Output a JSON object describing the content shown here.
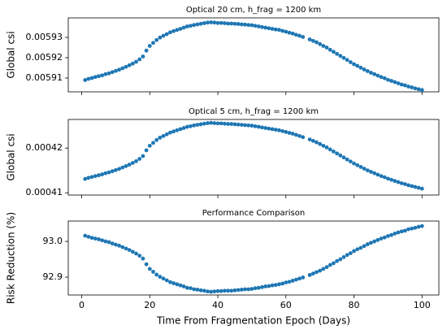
{
  "chart_data": [
    {
      "type": "scatter",
      "title": "Optical 20 cm, h_frag = 1200 km",
      "ylabel": "Global csi",
      "color": "#1f77b4",
      "xlim": [
        -3.95,
        104.95
      ],
      "xticks": [
        0,
        20,
        40,
        60,
        80,
        100
      ],
      "ylim": [
        0.0059032,
        0.0059396
      ],
      "yticks": [
        0.00591,
        0.00592,
        0.00593
      ],
      "x": [
        1,
        2,
        3,
        4,
        5,
        6,
        7,
        8,
        9,
        10,
        11,
        12,
        13,
        14,
        15,
        16,
        17,
        18,
        19,
        20,
        21,
        22,
        23,
        24,
        25,
        26,
        27,
        28,
        29,
        30,
        31,
        32,
        33,
        34,
        35,
        36,
        37,
        38,
        39,
        40,
        41,
        42,
        43,
        44,
        45,
        46,
        47,
        48,
        49,
        50,
        51,
        52,
        53,
        54,
        55,
        56,
        57,
        58,
        59,
        60,
        61,
        62,
        63,
        64,
        65,
        67,
        68,
        69,
        70,
        71,
        72,
        73,
        74,
        75,
        76,
        77,
        78,
        79,
        80,
        81,
        82,
        83,
        84,
        85,
        86,
        87,
        88,
        89,
        90,
        91,
        92,
        93,
        94,
        95,
        96,
        97,
        98,
        99,
        100
      ],
      "values": [
        0.005909,
        0.0059096,
        0.00591,
        0.0059105,
        0.0059109,
        0.0059113,
        0.0059119,
        0.0059123,
        0.0059129,
        0.0059135,
        0.0059141,
        0.0059148,
        0.0059155,
        0.0059163,
        0.0059171,
        0.005918,
        0.0059192,
        0.0059206,
        0.0059235,
        0.0059258,
        0.0059273,
        0.0059287,
        0.0059299,
        0.0059308,
        0.0059316,
        0.0059325,
        0.0059331,
        0.0059337,
        0.0059342,
        0.0059348,
        0.0059354,
        0.0059357,
        0.0059361,
        0.0059364,
        0.0059367,
        0.005937,
        0.0059373,
        0.0059374,
        0.0059373,
        0.0059371,
        0.0059371,
        0.005937,
        0.0059368,
        0.0059368,
        0.0059367,
        0.0059366,
        0.0059364,
        0.0059363,
        0.0059361,
        0.005936,
        0.0059357,
        0.0059354,
        0.0059351,
        0.0059348,
        0.0059345,
        0.0059342,
        0.0059339,
        0.0059337,
        0.0059332,
        0.0059328,
        0.0059323,
        0.0059319,
        0.0059313,
        0.0059308,
        0.0059302,
        0.005929,
        0.0059283,
        0.0059276,
        0.0059267,
        0.0059258,
        0.005925,
        0.0059239,
        0.0059229,
        0.0059219,
        0.0059209,
        0.0059199,
        0.0059189,
        0.0059178,
        0.0059168,
        0.005916,
        0.0059151,
        0.0059142,
        0.0059134,
        0.0059126,
        0.0059119,
        0.0059112,
        0.0059105,
        0.0059099,
        0.0059091,
        0.0059086,
        0.005908,
        0.0059074,
        0.0059068,
        0.0059064,
        0.0059058,
        0.0059054,
        0.0059049,
        0.0059045,
        0.0059041
      ]
    },
    {
      "type": "scatter",
      "title": "Optical 5 cm, h_frag = 1200 km",
      "ylabel": "Global csi",
      "color": "#1f77b4",
      "xlim": [
        -3.95,
        104.95
      ],
      "xticks": [
        0,
        20,
        40,
        60,
        80,
        100
      ],
      "ylim": [
        0.0004095,
        0.0004264
      ],
      "yticks": [
        0.00041,
        0.00042
      ],
      "x": [
        1,
        2,
        3,
        4,
        5,
        6,
        7,
        8,
        9,
        10,
        11,
        12,
        13,
        14,
        15,
        16,
        17,
        18,
        19,
        20,
        21,
        22,
        23,
        24,
        25,
        26,
        27,
        28,
        29,
        30,
        31,
        32,
        33,
        34,
        35,
        36,
        37,
        38,
        39,
        40,
        41,
        42,
        43,
        44,
        45,
        46,
        47,
        48,
        49,
        50,
        51,
        52,
        53,
        54,
        55,
        56,
        57,
        58,
        59,
        60,
        61,
        62,
        63,
        64,
        65,
        67,
        68,
        69,
        70,
        71,
        72,
        73,
        74,
        75,
        76,
        77,
        78,
        79,
        80,
        81,
        82,
        83,
        84,
        85,
        86,
        87,
        88,
        89,
        90,
        91,
        92,
        93,
        94,
        95,
        96,
        97,
        98,
        99,
        100
      ],
      "values": [
        0.0004131,
        0.00041336,
        0.00041355,
        0.00041374,
        0.00041393,
        0.00041412,
        0.00041438,
        0.00041457,
        0.00041483,
        0.00041508,
        0.00041534,
        0.00041566,
        0.00041598,
        0.0004163,
        0.00041668,
        0.00041707,
        0.00041758,
        0.00041822,
        0.0004195,
        0.00042052,
        0.00042116,
        0.0004218,
        0.00042232,
        0.0004227,
        0.00042308,
        0.00042347,
        0.00042372,
        0.00042398,
        0.00042424,
        0.00042449,
        0.00042475,
        0.00042488,
        0.00042507,
        0.0004252,
        0.00042532,
        0.00042545,
        0.00042558,
        0.00042564,
        0.00042558,
        0.00042552,
        0.00042552,
        0.00042545,
        0.00042539,
        0.00042539,
        0.00042532,
        0.00042526,
        0.0004252,
        0.00042513,
        0.00042507,
        0.000425,
        0.00042488,
        0.00042475,
        0.00042462,
        0.00042449,
        0.00042436,
        0.00042424,
        0.00042411,
        0.00042398,
        0.00042379,
        0.0004236,
        0.0004234,
        0.00042321,
        0.00042296,
        0.0004227,
        0.00042244,
        0.00042193,
        0.00042161,
        0.00042129,
        0.00042091,
        0.00042052,
        0.00042014,
        0.00041969,
        0.00041924,
        0.0004188,
        0.00041835,
        0.0004179,
        0.00041745,
        0.000417,
        0.00041656,
        0.00041617,
        0.00041579,
        0.0004154,
        0.00041502,
        0.0004147,
        0.00041438,
        0.00041406,
        0.00041374,
        0.00041348,
        0.00041316,
        0.00041291,
        0.00041265,
        0.0004124,
        0.00041214,
        0.00041195,
        0.00041169,
        0.0004115,
        0.00041131,
        0.00041112,
        0.00041092
      ]
    },
    {
      "type": "scatter",
      "title": "Performance Comparison",
      "ylabel": "Risk Reduction (%)",
      "xlabel": "Time From Fragmentation Epoch (Days)",
      "color": "#1f77b4",
      "xlim": [
        -3.95,
        104.95
      ],
      "xticks": [
        0,
        20,
        40,
        60,
        80,
        100
      ],
      "ylim": [
        92.85,
        93.057
      ],
      "yticks": [
        92.9,
        {
          "value": 93,
          "label": "93.0"
        }
      ],
      "x": [
        1,
        2,
        3,
        4,
        5,
        6,
        7,
        8,
        9,
        10,
        11,
        12,
        13,
        14,
        15,
        16,
        17,
        18,
        19,
        20,
        21,
        22,
        23,
        24,
        25,
        26,
        27,
        28,
        29,
        30,
        31,
        32,
        33,
        34,
        35,
        36,
        37,
        38,
        39,
        40,
        41,
        42,
        43,
        44,
        45,
        46,
        47,
        48,
        49,
        50,
        51,
        52,
        53,
        54,
        55,
        56,
        57,
        58,
        59,
        60,
        61,
        62,
        63,
        64,
        65,
        67,
        68,
        69,
        70,
        71,
        72,
        73,
        74,
        75,
        76,
        77,
        78,
        79,
        80,
        81,
        82,
        83,
        84,
        85,
        86,
        87,
        88,
        89,
        90,
        91,
        92,
        93,
        94,
        95,
        96,
        97,
        98,
        99,
        100
      ],
      "values": [
        93.016,
        93.013,
        93.01,
        93.008,
        93.006,
        93.003,
        93.0,
        92.998,
        92.994,
        92.991,
        92.988,
        92.984,
        92.98,
        92.976,
        92.971,
        92.966,
        92.96,
        92.952,
        92.936,
        92.923,
        92.915,
        92.907,
        92.901,
        92.896,
        92.891,
        92.886,
        92.883,
        92.88,
        92.877,
        92.874,
        92.87,
        92.869,
        92.866,
        92.865,
        92.863,
        92.862,
        92.86,
        92.859,
        92.86,
        92.861,
        92.861,
        92.862,
        92.862,
        92.862,
        92.863,
        92.864,
        92.865,
        92.866,
        92.866,
        92.867,
        92.869,
        92.87,
        92.872,
        92.874,
        92.875,
        92.877,
        92.878,
        92.88,
        92.882,
        92.885,
        92.887,
        92.89,
        92.893,
        92.896,
        92.899,
        92.906,
        92.91,
        92.914,
        92.918,
        92.923,
        92.928,
        92.934,
        92.939,
        92.945,
        92.95,
        92.956,
        92.962,
        92.967,
        92.973,
        92.978,
        92.982,
        92.987,
        92.992,
        92.996,
        93.0,
        93.004,
        93.008,
        93.011,
        93.015,
        93.018,
        93.022,
        93.025,
        93.028,
        93.03,
        93.034,
        93.036,
        93.038,
        93.041,
        93.043
      ]
    }
  ]
}
